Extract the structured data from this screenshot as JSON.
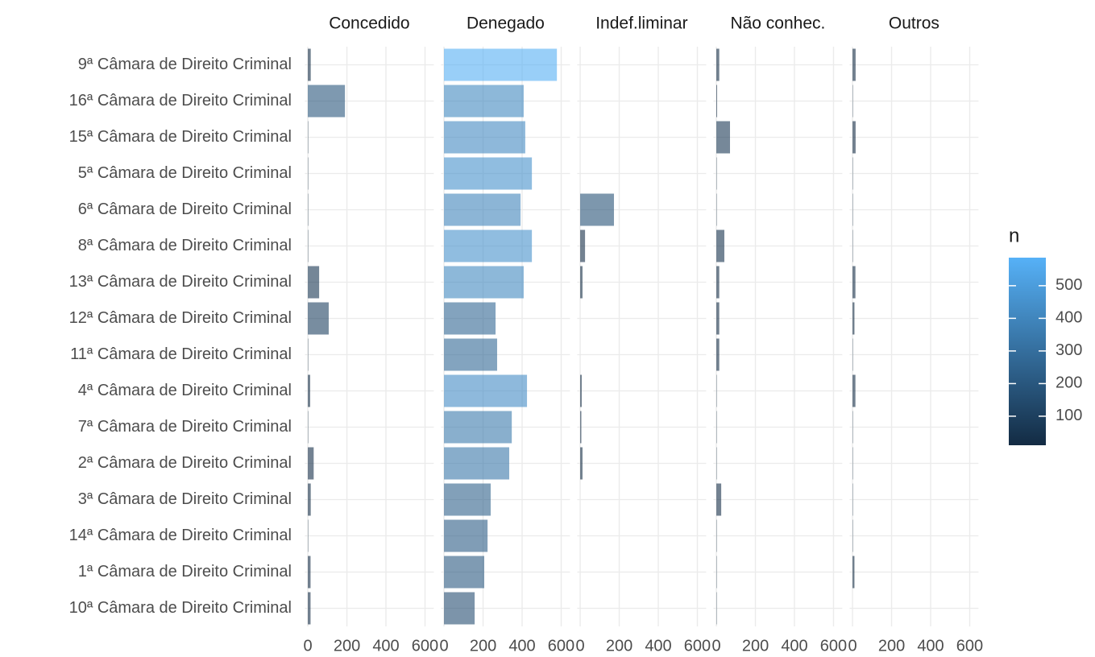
{
  "chart_data": {
    "type": "bar",
    "orientation": "horizontal",
    "facets": true,
    "categories": [
      "9ª Câmara de Direito Criminal",
      "16ª Câmara de Direito Criminal",
      "15ª Câmara de Direito Criminal",
      "5ª Câmara de Direito Criminal",
      "6ª Câmara de Direito Criminal",
      "8ª Câmara de Direito Criminal",
      "13ª Câmara de Direito Criminal",
      "12ª Câmara de Direito Criminal",
      "11ª Câmara de Direito Criminal",
      "4ª Câmara de Direito Criminal",
      "7ª Câmara de Direito Criminal",
      "2ª Câmara de Direito Criminal",
      "3ª Câmara de Direito Criminal",
      "14ª Câmara de Direito Criminal",
      "1ª Câmara de Direito Criminal",
      "10ª Câmara de Direito Criminal"
    ],
    "series": [
      {
        "name": "Concedido",
        "values": [
          15,
          190,
          2,
          2,
          2,
          2,
          58,
          107,
          2,
          12,
          2,
          30,
          15,
          2,
          14,
          14
        ]
      },
      {
        "name": "Denegado",
        "values": [
          578,
          408,
          416,
          450,
          392,
          450,
          408,
          264,
          272,
          425,
          347,
          334,
          239,
          223,
          206,
          157
        ]
      },
      {
        "name": "Indef.liminar",
        "values": [
          0,
          0,
          0,
          0,
          173,
          25,
          12,
          0,
          0,
          8,
          6,
          12,
          0,
          0,
          0,
          0
        ]
      },
      {
        "name": "Não conhec.",
        "values": [
          15,
          4,
          70,
          2,
          2,
          41,
          15,
          15,
          15,
          2,
          2,
          2,
          25,
          2,
          2,
          2
        ]
      },
      {
        "name": "Outros",
        "values": [
          16,
          2,
          16,
          2,
          2,
          2,
          15,
          10,
          2,
          15,
          2,
          2,
          2,
          2,
          10,
          0
        ]
      }
    ],
    "xlim": [
      -15,
      645
    ],
    "xticks": [
      0,
      200,
      400,
      600
    ],
    "grid": true,
    "legend_title": "n",
    "colorlim": [
      11,
      586
    ],
    "colorticks": [
      100,
      200,
      300,
      400,
      500
    ],
    "low_color": "#132B43",
    "high_color": "#56B1F7",
    "opacity": 0.6
  }
}
